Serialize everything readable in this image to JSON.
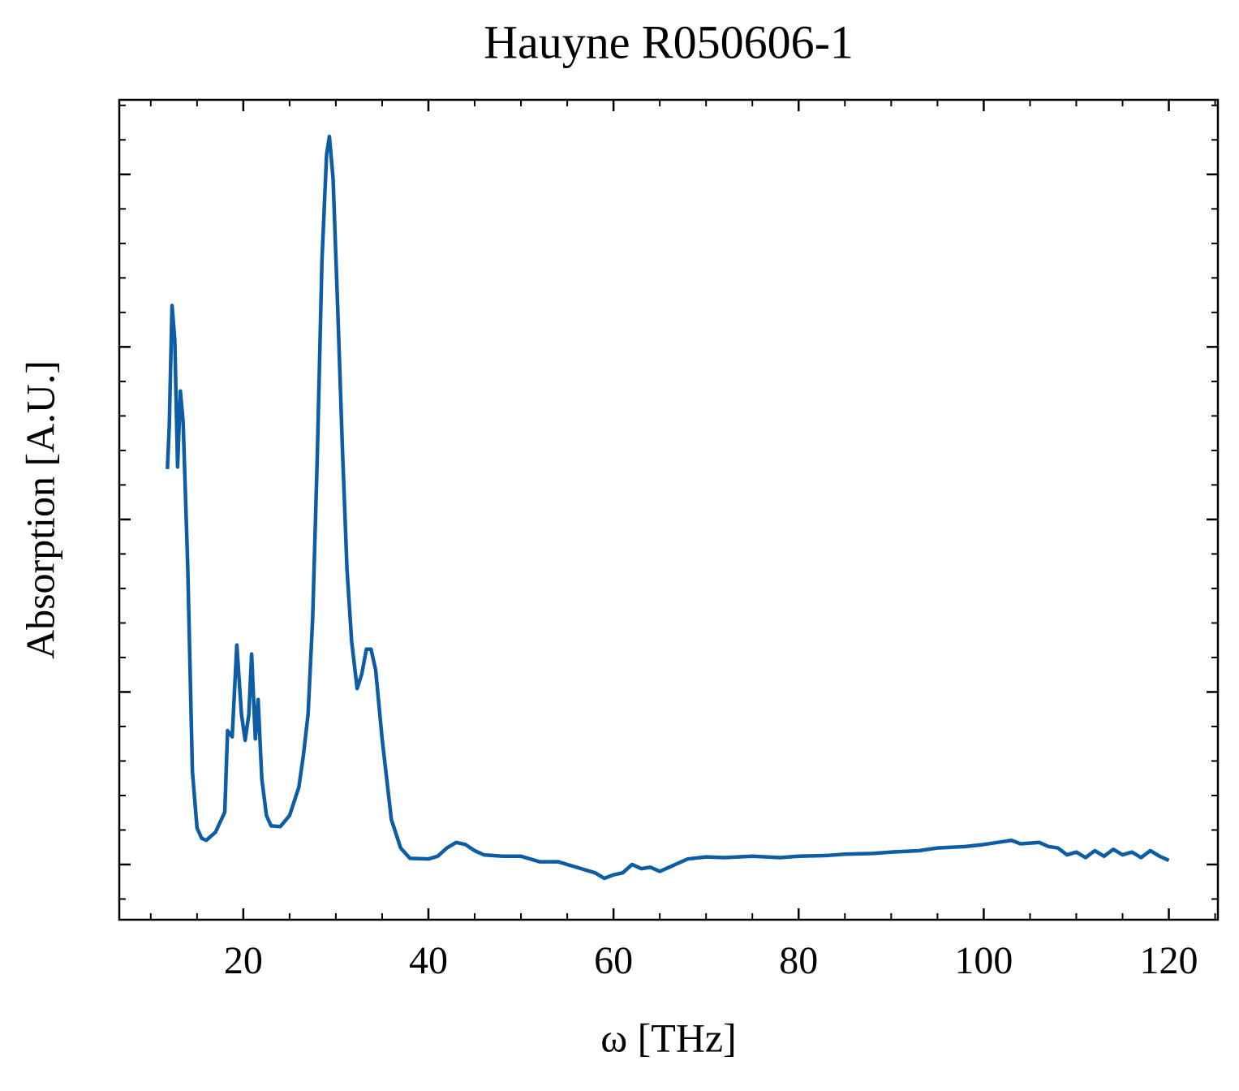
{
  "chart_data": {
    "type": "line",
    "title": "Hauyne R050606-1",
    "x_label": "ω [THz]",
    "y_label": "Absorption [A.U.]",
    "xlim": [
      6.6,
      125.3
    ],
    "ylim": [
      -0.08,
      1.108
    ],
    "xticks": [
      20,
      40,
      60,
      80,
      100,
      120
    ],
    "yticks": [
      0,
      0.25,
      0.5,
      0.75,
      1
    ],
    "ytick_labels": false,
    "x_minor_step": 5,
    "y_minor_step": 0.05,
    "ticks_direction": "in",
    "series": [
      {
        "name": "Hauyne R050606-1",
        "color": "#0c5da5",
        "x": [
          11.8,
          12.0,
          12.3,
          12.6,
          12.9,
          13.2,
          13.5,
          14.0,
          14.5,
          15.0,
          15.5,
          16,
          17,
          18,
          18.3,
          18.8,
          19.3,
          19.8,
          20.2,
          20.6,
          20.9,
          21.3,
          21.6,
          22.0,
          22.5,
          23.0,
          24,
          25,
          26,
          26.5,
          27,
          27.5,
          28,
          28.5,
          29,
          29.3,
          29.7,
          30.2,
          30.7,
          31.2,
          31.7,
          32.3,
          32.8,
          33.3,
          33.8,
          34.3,
          35,
          36,
          37,
          38,
          40,
          41,
          42,
          43,
          44,
          45,
          46,
          48,
          50,
          52,
          54,
          56,
          58,
          59,
          60,
          61,
          62,
          63,
          64,
          65,
          66,
          68,
          70,
          72,
          75,
          78,
          80,
          83,
          85,
          88,
          90,
          93,
          95,
          98,
          100,
          102,
          103,
          104,
          106,
          107,
          108,
          109,
          110,
          111,
          112,
          113,
          114,
          115,
          116,
          117,
          118,
          119,
          120
        ],
        "values": [
          0.573,
          0.635,
          0.81,
          0.76,
          0.576,
          0.686,
          0.641,
          0.43,
          0.135,
          0.053,
          0.038,
          0.035,
          0.047,
          0.076,
          0.194,
          0.185,
          0.318,
          0.218,
          0.18,
          0.218,
          0.305,
          0.182,
          0.239,
          0.124,
          0.071,
          0.056,
          0.055,
          0.071,
          0.112,
          0.159,
          0.218,
          0.359,
          0.594,
          0.876,
          1.029,
          1.055,
          0.994,
          0.806,
          0.606,
          0.429,
          0.324,
          0.255,
          0.276,
          0.312,
          0.312,
          0.282,
          0.182,
          0.065,
          0.024,
          0.009,
          0.008,
          0.012,
          0.024,
          0.032,
          0.029,
          0.02,
          0.014,
          0.012,
          0.012,
          0.004,
          0.004,
          -0.004,
          -0.012,
          -0.02,
          -0.015,
          -0.012,
          0.0,
          -0.006,
          -0.004,
          -0.01,
          -0.004,
          0.008,
          0.011,
          0.01,
          0.012,
          0.01,
          0.012,
          0.013,
          0.015,
          0.016,
          0.018,
          0.02,
          0.024,
          0.026,
          0.029,
          0.033,
          0.035,
          0.03,
          0.032,
          0.026,
          0.024,
          0.014,
          0.018,
          0.01,
          0.02,
          0.012,
          0.022,
          0.014,
          0.018,
          0.01,
          0.02,
          0.012,
          0.006
        ]
      }
    ]
  }
}
